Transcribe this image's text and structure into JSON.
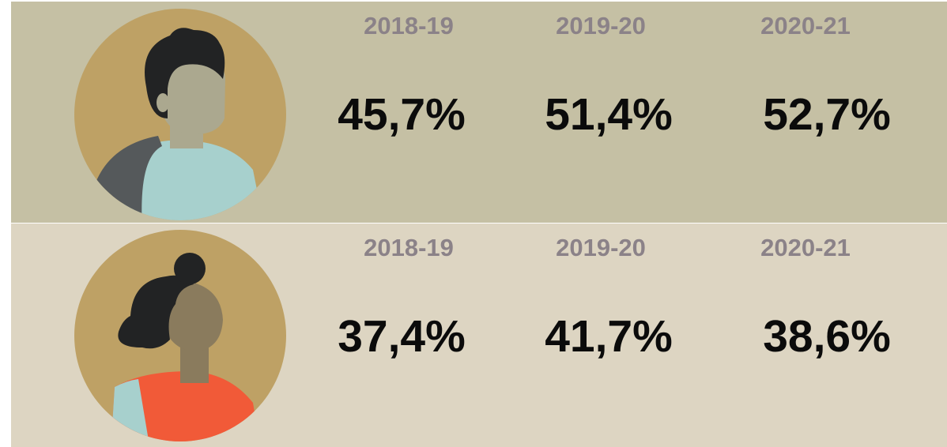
{
  "rows": [
    {
      "periods": [
        "2018-19",
        "2019-20",
        "2020-21"
      ],
      "values": [
        "45,7%",
        "51,4%",
        "52,7%"
      ]
    },
    {
      "periods": [
        "2018-19",
        "2019-20",
        "2020-21"
      ],
      "values": [
        "37,4%",
        "41,7%",
        "38,6%"
      ]
    }
  ]
}
